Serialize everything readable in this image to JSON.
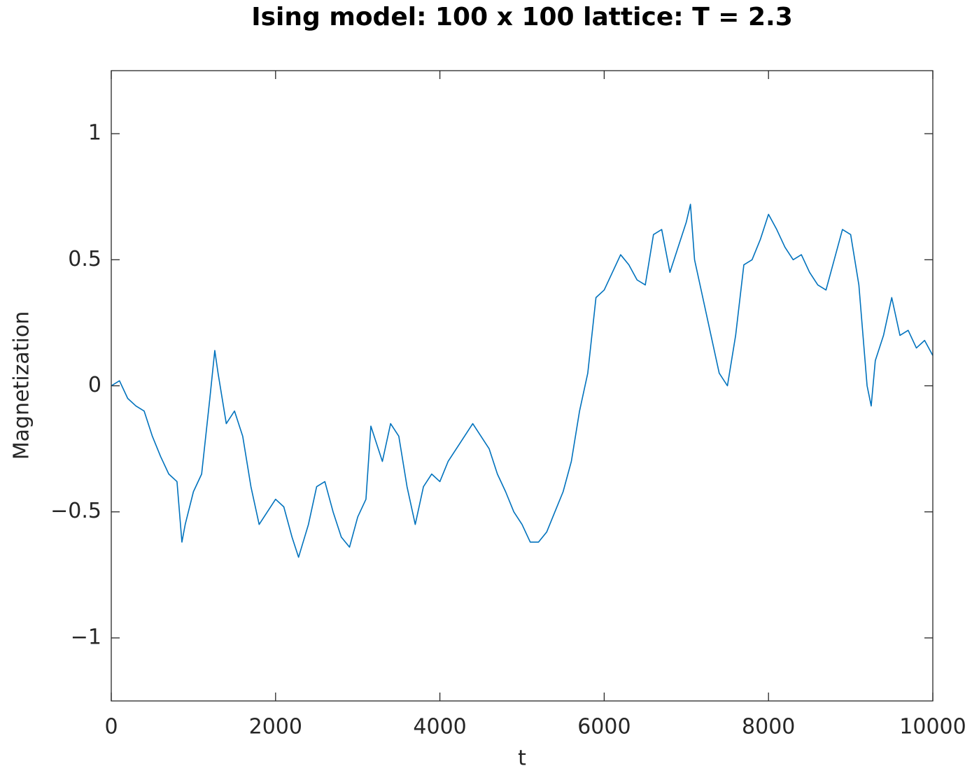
{
  "chart_data": {
    "type": "line",
    "title": "Ising model: 100 x 100 lattice: T = 2.3",
    "x_label": "t",
    "y_label": "Magnetization",
    "x": [
      0,
      100,
      200,
      300,
      400,
      500,
      600,
      700,
      800,
      860,
      900,
      1000,
      1100,
      1200,
      1260,
      1300,
      1400,
      1500,
      1600,
      1700,
      1800,
      1900,
      2000,
      2100,
      2200,
      2280,
      2400,
      2500,
      2600,
      2700,
      2800,
      2900,
      3000,
      3100,
      3160,
      3300,
      3400,
      3500,
      3600,
      3700,
      3800,
      3900,
      4000,
      4100,
      4200,
      4300,
      4400,
      4500,
      4600,
      4700,
      4800,
      4900,
      5000,
      5100,
      5200,
      5300,
      5400,
      5500,
      5600,
      5700,
      5800,
      5900,
      6000,
      6100,
      6200,
      6300,
      6400,
      6500,
      6600,
      6700,
      6800,
      6900,
      7000,
      7050,
      7100,
      7200,
      7300,
      7400,
      7500,
      7600,
      7700,
      7800,
      7900,
      8000,
      8100,
      8200,
      8300,
      8400,
      8500,
      8600,
      8700,
      8800,
      8900,
      9000,
      9100,
      9200,
      9250,
      9300,
      9400,
      9500,
      9600,
      9700,
      9800,
      9900,
      10000
    ],
    "values": [
      0.0,
      0.02,
      -0.05,
      -0.08,
      -0.1,
      -0.2,
      -0.28,
      -0.35,
      -0.38,
      -0.62,
      -0.55,
      -0.42,
      -0.35,
      -0.05,
      0.14,
      0.05,
      -0.15,
      -0.1,
      -0.2,
      -0.4,
      -0.55,
      -0.5,
      -0.45,
      -0.48,
      -0.6,
      -0.68,
      -0.55,
      -0.4,
      -0.38,
      -0.5,
      -0.6,
      -0.64,
      -0.52,
      -0.45,
      -0.16,
      -0.3,
      -0.15,
      -0.2,
      -0.4,
      -0.55,
      -0.4,
      -0.35,
      -0.38,
      -0.3,
      -0.25,
      -0.2,
      -0.15,
      -0.2,
      -0.25,
      -0.35,
      -0.42,
      -0.5,
      -0.55,
      -0.62,
      -0.62,
      -0.58,
      -0.5,
      -0.42,
      -0.3,
      -0.1,
      0.05,
      0.35,
      0.38,
      0.45,
      0.52,
      0.48,
      0.42,
      0.4,
      0.6,
      0.62,
      0.45,
      0.55,
      0.65,
      0.72,
      0.5,
      0.35,
      0.2,
      0.05,
      0.0,
      0.2,
      0.48,
      0.5,
      0.58,
      0.68,
      0.62,
      0.55,
      0.5,
      0.52,
      0.45,
      0.4,
      0.38,
      0.5,
      0.62,
      0.6,
      0.4,
      0.0,
      -0.08,
      0.1,
      0.2,
      0.35,
      0.2,
      0.22,
      0.15,
      0.18,
      0.12
    ],
    "color": "#0072bd",
    "xlim": [
      0,
      10000
    ],
    "ylim": [
      -1.25,
      1.25
    ],
    "xticks": [
      0,
      2000,
      4000,
      6000,
      8000,
      10000
    ],
    "yticks": [
      {
        "value": -1,
        "label": "−1"
      },
      {
        "value": -0.5,
        "label": "−0.5"
      },
      0,
      0.5,
      1
    ],
    "grid": false
  }
}
